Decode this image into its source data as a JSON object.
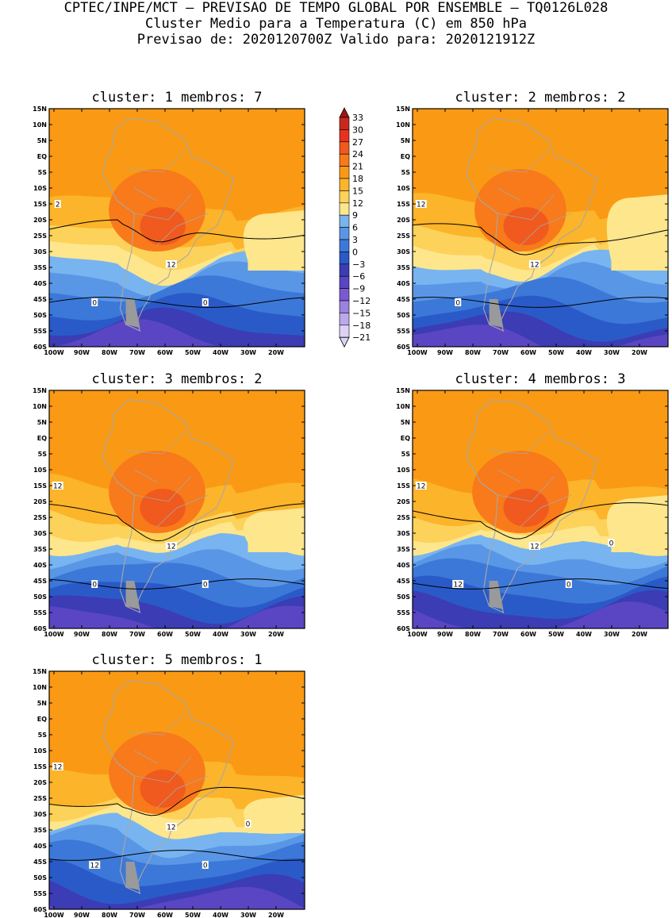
{
  "header": {
    "line1": "CPTEC/INPE/MCT – PREVISAO DE TEMPO GLOBAL POR ENSEMBLE – TQ0126L028",
    "line2": "Cluster Medio para a Temperatura (C) em 850 hPa",
    "line3": "Previsao de: 2020120700Z   Valido para: 2020121912Z"
  },
  "axes": {
    "lat_labels": [
      "15N",
      "10N",
      "5N",
      "EQ",
      "5S",
      "10S",
      "15S",
      "20S",
      "25S",
      "30S",
      "35S",
      "40S",
      "45S",
      "50S",
      "55S",
      "60S"
    ],
    "lon_labels": [
      "100W",
      "90W",
      "80W",
      "70W",
      "60W",
      "50W",
      "40W",
      "30W",
      "20W"
    ]
  },
  "colorbar": {
    "labels": [
      "33",
      "30",
      "27",
      "24",
      "21",
      "18",
      "15",
      "12",
      "9",
      "6",
      "3",
      "0",
      "−3",
      "−6",
      "−9",
      "−12",
      "−15",
      "−18",
      "−21"
    ],
    "colors": [
      "#a01414",
      "#c8281e",
      "#e6321e",
      "#f05a1e",
      "#f87a1a",
      "#fa9a14",
      "#fcb42a",
      "#fdd25a",
      "#fde68c",
      "#78b4f0",
      "#5a96e6",
      "#3c78d8",
      "#2a5ac8",
      "#3c3cb4",
      "#5a46c3",
      "#7a5ad2",
      "#9a82e0",
      "#bca8ec",
      "#dcd2f6"
    ]
  },
  "panels": [
    {
      "title": "cluster: 1   membros: 7",
      "labels": [
        "2",
        "12",
        "0",
        "0"
      ]
    },
    {
      "title": "cluster: 2   membros: 2",
      "labels": [
        "12",
        "12",
        "0"
      ]
    },
    {
      "title": "cluster: 3   membros: 2",
      "labels": [
        "12",
        "12",
        "0",
        "0"
      ]
    },
    {
      "title": "cluster: 4   membros: 3",
      "labels": [
        "12",
        "12",
        "12",
        "0",
        "0"
      ]
    },
    {
      "title": "cluster: 5   membros: 1",
      "labels": [
        "12",
        "12",
        "12",
        "0",
        "0"
      ]
    }
  ]
}
